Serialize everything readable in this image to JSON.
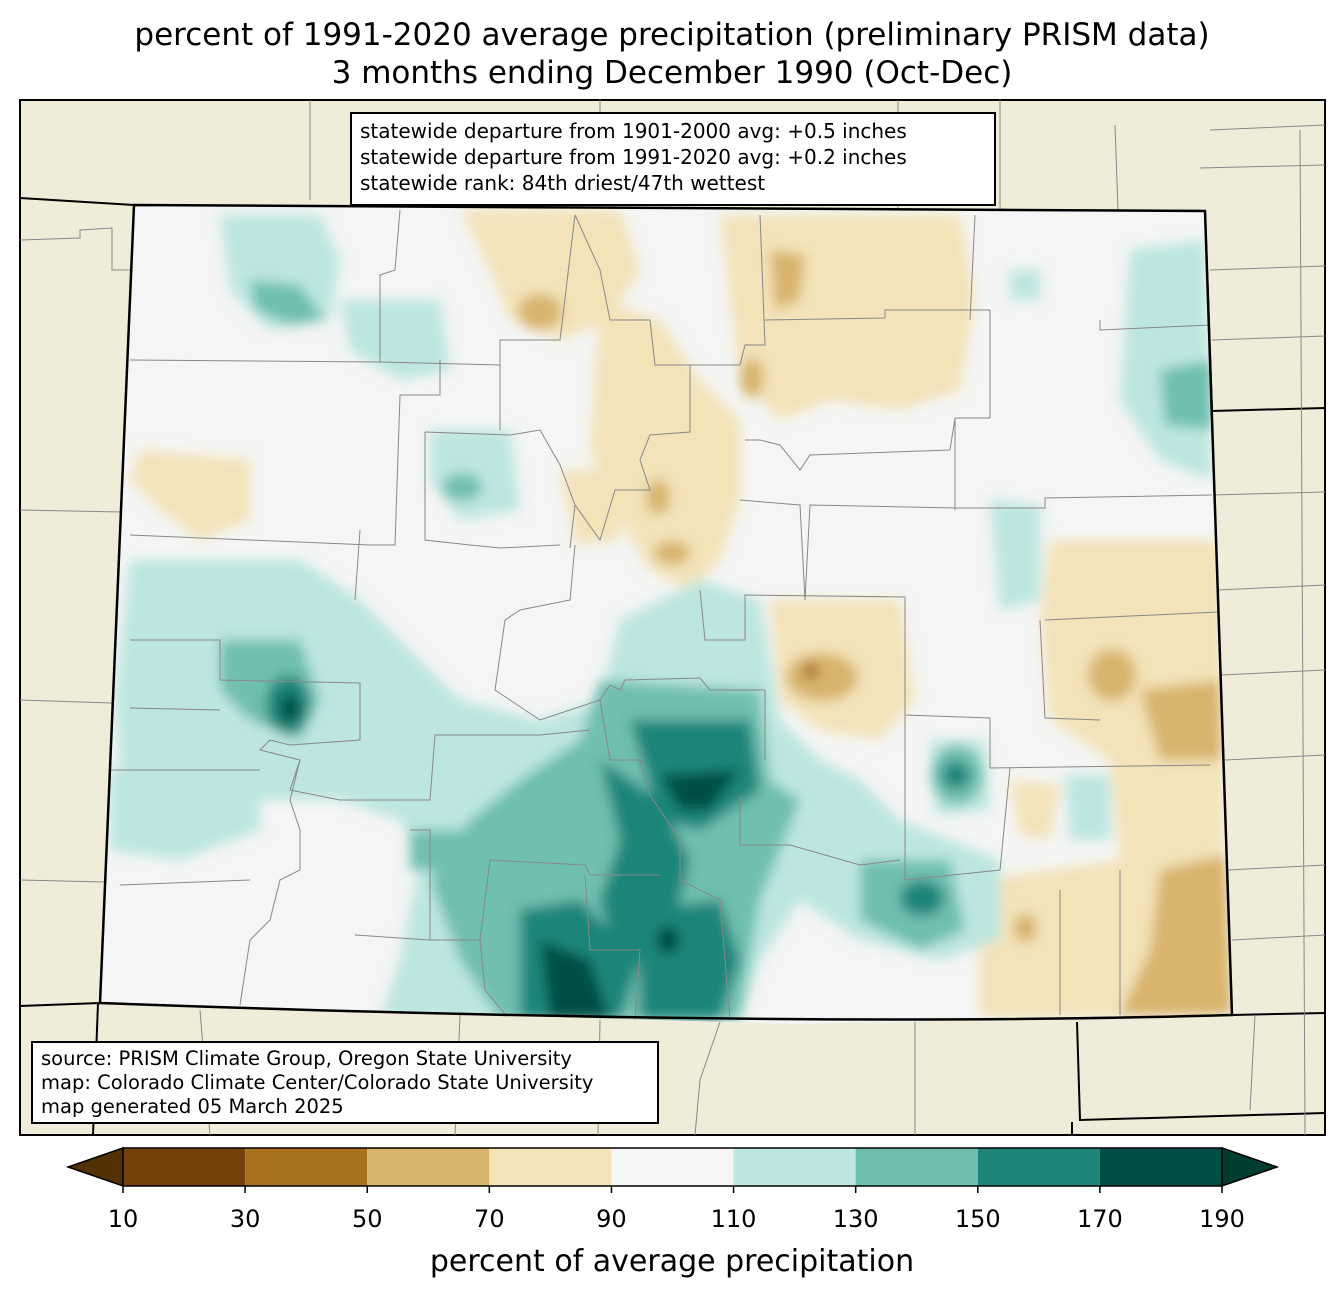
{
  "title": {
    "line1": "percent of 1991-2020 average precipitation (preliminary PRISM data)",
    "line2": "3 months ending December 1990 (Oct-Dec)"
  },
  "stats": {
    "line1": "statewide departure from 1901-2000 avg: +0.5 inches",
    "line2": "statewide departure from 1991-2020 avg: +0.2 inches",
    "line3": "statewide rank: 84th driest/47th wettest"
  },
  "source": {
    "line1": "source: PRISM Climate Group, Oregon State University",
    "line2": "map: Colorado Climate Center/Colorado State University",
    "line3": "map generated 05 March 2025"
  },
  "colorbar": {
    "label": "percent of average precipitation",
    "ticks": [
      "10",
      "30",
      "50",
      "70",
      "90",
      "110",
      "130",
      "150",
      "170",
      "190"
    ],
    "colors": [
      "#734109",
      "#a9701e",
      "#d8b46c",
      "#f3e3b9",
      "#f4f5f4",
      "#bde6e0",
      "#6fbfb1",
      "#1f857a",
      "#004f44"
    ],
    "under_color": "#543005",
    "over_color": "#003c30"
  },
  "map_colors": {
    "background": "#efecda",
    "state_fill": "#f4f5f4",
    "border": "#000000",
    "county_line": "#888888"
  }
}
